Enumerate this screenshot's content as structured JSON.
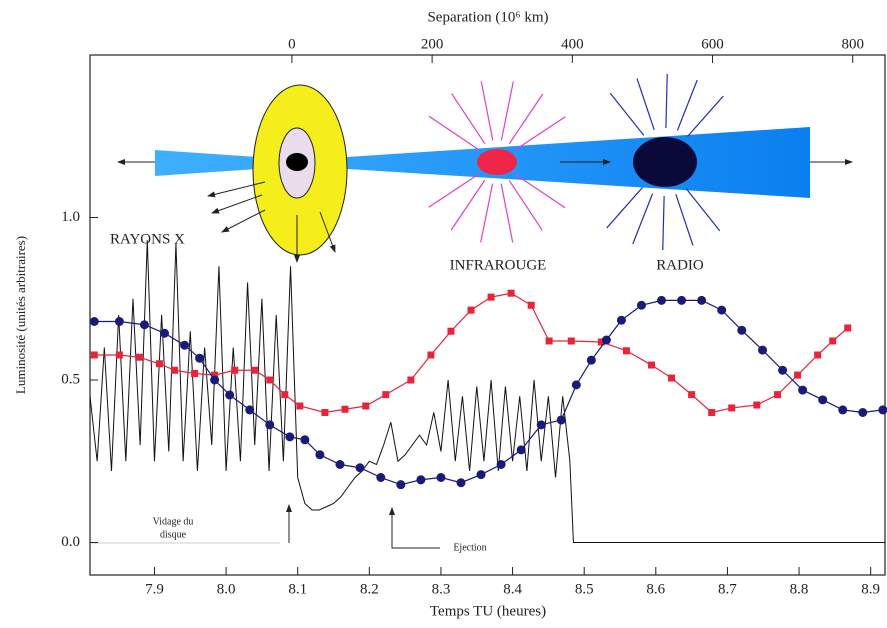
{
  "chart_data": {
    "type": "line",
    "title": "Separation   (10⁶ km)",
    "xlabel": "Temps TU (heures)",
    "ylabel": "Luminosité  (unités arbitraires)",
    "xlim": [
      7.81,
      8.92
    ],
    "xticks": [
      7.9,
      {
        "value": 8,
        "label": "8.0"
      },
      8.1,
      8.2,
      8.3,
      8.4,
      8.5,
      8.6,
      8.7,
      8.8,
      8.9
    ],
    "x2lim": [
      -288,
      846
    ],
    "x2ticks": [
      0,
      200,
      400,
      600,
      800
    ],
    "ylim": [
      -0.1,
      1.5
    ],
    "yticks": [
      {
        "value": 0,
        "label": "0.0"
      },
      0.5,
      {
        "value": 1,
        "label": "1.0"
      }
    ],
    "annotations": [
      "RAYONS X",
      "INFRAROUGE",
      "RADIO",
      "Vidage du",
      "disque",
      "Ejection"
    ],
    "series": [
      {
        "color": "#e8243a",
        "marker": "square",
        "x": [
          7.816,
          7.851,
          7.879,
          7.907,
          7.928,
          7.956,
          7.984,
          8.012,
          8.04,
          8.061,
          8.082,
          8.103,
          8.138,
          8.166,
          8.195,
          8.223,
          8.258,
          8.286,
          8.314,
          8.342,
          8.37,
          8.398,
          8.426,
          8.451,
          8.482,
          8.524,
          8.559,
          8.594,
          8.622,
          8.65,
          8.678,
          8.706,
          8.741,
          8.77,
          8.798,
          8.826,
          8.847,
          8.868
        ],
        "values": [
          0.577,
          0.577,
          0.57,
          0.55,
          0.53,
          0.52,
          0.515,
          0.53,
          0.53,
          0.5,
          0.455,
          0.42,
          0.4,
          0.41,
          0.42,
          0.455,
          0.5,
          0.577,
          0.65,
          0.715,
          0.755,
          0.767,
          0.73,
          0.62,
          0.62,
          0.617,
          0.59,
          0.546,
          0.506,
          0.455,
          0.4,
          0.414,
          0.423,
          0.455,
          0.515,
          0.577,
          0.62,
          0.66
        ]
      },
      {
        "color": "#1a1a78",
        "marker": "circle",
        "x": [
          7.816,
          7.851,
          7.886,
          7.914,
          7.942,
          7.963,
          7.984,
          8.005,
          8.033,
          8.061,
          8.089,
          8.11,
          8.131,
          8.159,
          8.187,
          8.216,
          8.244,
          8.272,
          8.3,
          8.328,
          8.356,
          8.384,
          8.412,
          8.44,
          8.468,
          8.489,
          8.51,
          8.531,
          8.552,
          8.58,
          8.608,
          8.636,
          8.664,
          8.692,
          8.72,
          8.749,
          8.777,
          8.805,
          8.833,
          8.861,
          8.889,
          8.917
        ],
        "values": [
          0.68,
          0.68,
          0.67,
          0.644,
          0.607,
          0.567,
          0.5,
          0.454,
          0.408,
          0.362,
          0.325,
          0.316,
          0.27,
          0.24,
          0.23,
          0.2,
          0.178,
          0.193,
          0.2,
          0.184,
          0.209,
          0.24,
          0.285,
          0.362,
          0.377,
          0.485,
          0.561,
          0.623,
          0.684,
          0.73,
          0.745,
          0.745,
          0.745,
          0.715,
          0.653,
          0.592,
          0.53,
          0.469,
          0.439,
          0.408,
          0.4,
          0.408
        ]
      },
      {
        "color": "#111111",
        "marker": "none",
        "x": [
          7.81,
          7.82,
          7.83,
          7.84,
          7.85,
          7.86,
          7.87,
          7.88,
          7.89,
          7.9,
          7.91,
          7.92,
          7.93,
          7.94,
          7.95,
          7.96,
          7.97,
          7.98,
          7.99,
          8.0,
          8.01,
          8.02,
          8.03,
          8.04,
          8.05,
          8.06,
          8.07,
          8.08,
          8.09,
          8.1,
          8.11,
          8.12,
          8.13,
          8.14,
          8.15,
          8.16,
          8.17,
          8.18,
          8.19,
          8.2,
          8.21,
          8.22,
          8.23,
          8.24,
          8.25,
          8.26,
          8.27,
          8.28,
          8.29,
          8.3,
          8.31,
          8.32,
          8.33,
          8.34,
          8.35,
          8.36,
          8.37,
          8.38,
          8.39,
          8.4,
          8.41,
          8.42,
          8.43,
          8.44,
          8.45,
          8.46,
          8.47,
          8.48,
          8.485,
          8.92
        ],
        "values": [
          0.45,
          0.25,
          0.6,
          0.22,
          0.7,
          0.25,
          0.75,
          0.3,
          0.93,
          0.25,
          0.7,
          0.28,
          0.92,
          0.25,
          0.65,
          0.22,
          0.6,
          0.3,
          0.85,
          0.22,
          0.6,
          0.25,
          0.8,
          0.3,
          0.75,
          0.22,
          0.7,
          0.25,
          0.85,
          0.2,
          0.12,
          0.1,
          0.1,
          0.11,
          0.12,
          0.14,
          0.17,
          0.2,
          0.22,
          0.25,
          0.24,
          0.3,
          0.37,
          0.25,
          0.27,
          0.3,
          0.33,
          0.3,
          0.4,
          0.28,
          0.5,
          0.25,
          0.45,
          0.22,
          0.48,
          0.25,
          0.5,
          0.22,
          0.48,
          0.25,
          0.45,
          0.22,
          0.5,
          0.25,
          0.45,
          0.2,
          0.45,
          0.25,
          0,
          0
        ]
      }
    ]
  }
}
